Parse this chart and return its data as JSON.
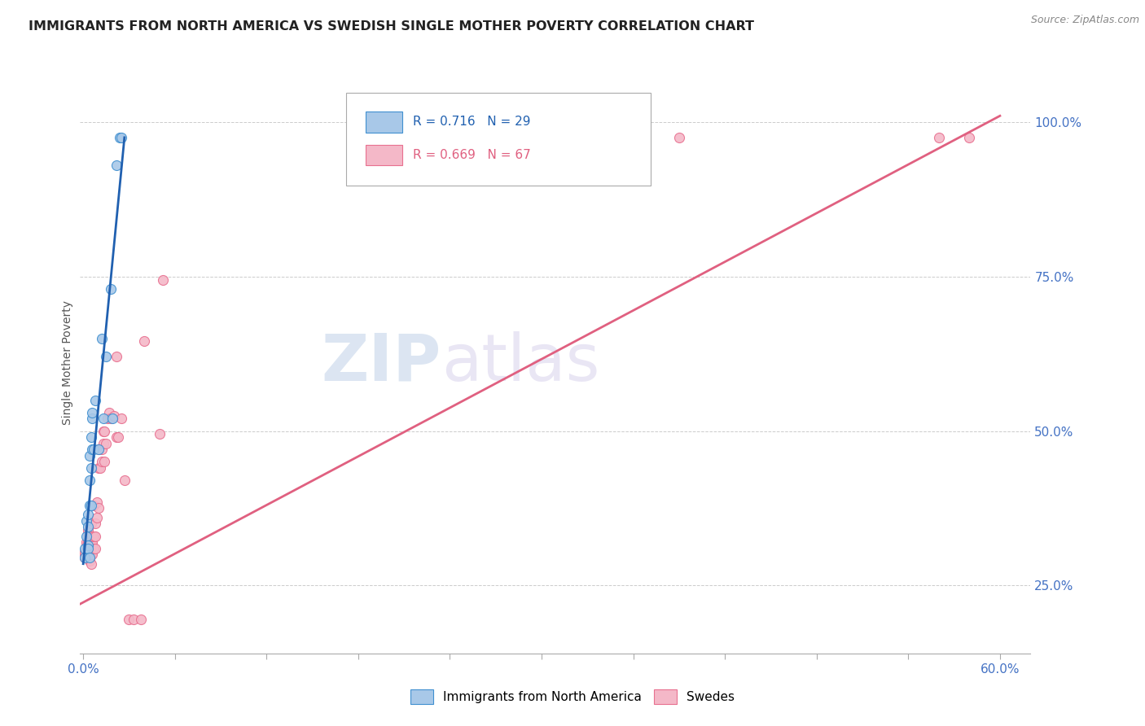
{
  "title": "IMMIGRANTS FROM NORTH AMERICA VS SWEDISH SINGLE MOTHER POVERTY CORRELATION CHART",
  "source": "Source: ZipAtlas.com",
  "ylabel": "Single Mother Poverty",
  "yaxis_labels": [
    "100.0%",
    "75.0%",
    "50.0%",
    "25.0%"
  ],
  "yaxis_values": [
    1.0,
    0.75,
    0.5,
    0.25
  ],
  "legend_blue_R": "0.716",
  "legend_blue_N": "29",
  "legend_pink_R": "0.669",
  "legend_pink_N": "67",
  "legend_label_blue": "Immigrants from North America",
  "legend_label_pink": "Swedes",
  "blue_fill": "#a8c8e8",
  "pink_fill": "#f4b8c8",
  "blue_edge": "#4090d0",
  "pink_edge": "#e87090",
  "blue_line_color": "#2060b0",
  "pink_line_color": "#e06080",
  "blue_scatter": [
    [
      0.001,
      0.295
    ],
    [
      0.001,
      0.31
    ],
    [
      0.002,
      0.33
    ],
    [
      0.002,
      0.355
    ],
    [
      0.003,
      0.345
    ],
    [
      0.003,
      0.365
    ],
    [
      0.003,
      0.315
    ],
    [
      0.003,
      0.31
    ],
    [
      0.004,
      0.295
    ],
    [
      0.004,
      0.42
    ],
    [
      0.004,
      0.38
    ],
    [
      0.004,
      0.46
    ],
    [
      0.005,
      0.38
    ],
    [
      0.005,
      0.44
    ],
    [
      0.005,
      0.49
    ],
    [
      0.006,
      0.52
    ],
    [
      0.006,
      0.47
    ],
    [
      0.006,
      0.53
    ],
    [
      0.007,
      0.47
    ],
    [
      0.008,
      0.55
    ],
    [
      0.01,
      0.47
    ],
    [
      0.012,
      0.65
    ],
    [
      0.013,
      0.52
    ],
    [
      0.015,
      0.62
    ],
    [
      0.018,
      0.73
    ],
    [
      0.019,
      0.52
    ],
    [
      0.022,
      0.93
    ],
    [
      0.024,
      0.975
    ],
    [
      0.025,
      0.975
    ]
  ],
  "pink_scatter": [
    [
      0.001,
      0.295
    ],
    [
      0.001,
      0.3
    ],
    [
      0.001,
      0.305
    ],
    [
      0.001,
      0.295
    ],
    [
      0.002,
      0.3
    ],
    [
      0.002,
      0.305
    ],
    [
      0.002,
      0.315
    ],
    [
      0.002,
      0.32
    ],
    [
      0.002,
      0.295
    ],
    [
      0.003,
      0.3
    ],
    [
      0.003,
      0.31
    ],
    [
      0.003,
      0.315
    ],
    [
      0.003,
      0.32
    ],
    [
      0.003,
      0.33
    ],
    [
      0.003,
      0.335
    ],
    [
      0.003,
      0.34
    ],
    [
      0.004,
      0.29
    ],
    [
      0.004,
      0.3
    ],
    [
      0.004,
      0.31
    ],
    [
      0.004,
      0.32
    ],
    [
      0.005,
      0.285
    ],
    [
      0.005,
      0.3
    ],
    [
      0.005,
      0.315
    ],
    [
      0.005,
      0.32
    ],
    [
      0.005,
      0.33
    ],
    [
      0.005,
      0.35
    ],
    [
      0.006,
      0.3
    ],
    [
      0.006,
      0.315
    ],
    [
      0.006,
      0.32
    ],
    [
      0.006,
      0.33
    ],
    [
      0.007,
      0.31
    ],
    [
      0.007,
      0.33
    ],
    [
      0.007,
      0.38
    ],
    [
      0.008,
      0.31
    ],
    [
      0.008,
      0.33
    ],
    [
      0.008,
      0.35
    ],
    [
      0.009,
      0.36
    ],
    [
      0.009,
      0.385
    ],
    [
      0.01,
      0.375
    ],
    [
      0.01,
      0.44
    ],
    [
      0.01,
      0.47
    ],
    [
      0.011,
      0.44
    ],
    [
      0.012,
      0.45
    ],
    [
      0.012,
      0.47
    ],
    [
      0.013,
      0.48
    ],
    [
      0.013,
      0.5
    ],
    [
      0.014,
      0.45
    ],
    [
      0.014,
      0.5
    ],
    [
      0.015,
      0.48
    ],
    [
      0.016,
      0.52
    ],
    [
      0.017,
      0.53
    ],
    [
      0.018,
      0.52
    ],
    [
      0.02,
      0.525
    ],
    [
      0.022,
      0.62
    ],
    [
      0.022,
      0.49
    ],
    [
      0.023,
      0.49
    ],
    [
      0.025,
      0.52
    ],
    [
      0.027,
      0.42
    ],
    [
      0.03,
      0.195
    ],
    [
      0.033,
      0.195
    ],
    [
      0.038,
      0.195
    ],
    [
      0.04,
      0.645
    ],
    [
      0.05,
      0.495
    ],
    [
      0.052,
      0.745
    ],
    [
      0.39,
      0.975
    ],
    [
      0.56,
      0.975
    ],
    [
      0.58,
      0.975
    ]
  ],
  "xlim": [
    -0.002,
    0.62
  ],
  "ylim": [
    0.14,
    1.08
  ],
  "blue_line_x": [
    0.0,
    0.027
  ],
  "blue_line_y": [
    0.285,
    0.975
  ],
  "pink_line_x": [
    -0.002,
    0.6
  ],
  "pink_line_y": [
    0.22,
    1.01
  ],
  "watermark_zip": "ZIP",
  "watermark_atlas": "atlas",
  "axis_color": "#4472c4",
  "grid_color": "#cccccc",
  "title_color": "#222222",
  "background_color": "#ffffff",
  "title_fontsize": 11.5,
  "scatter_size": 75
}
